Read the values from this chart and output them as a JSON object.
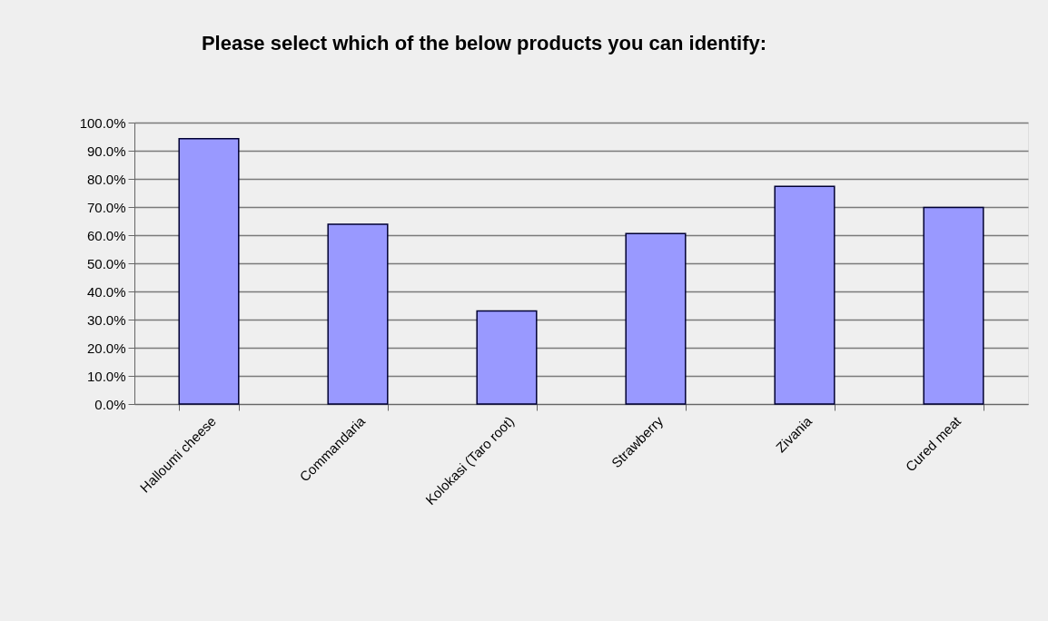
{
  "chart_data": {
    "type": "bar",
    "title": "Please select which of the below products you can identify:",
    "categories": [
      "Halloumi cheese",
      "Commandaria",
      "Kolokasi (Taro root)",
      "Strawberry",
      "Zivania",
      "Cured meat"
    ],
    "values": [
      94.3,
      63.9,
      33.1,
      60.6,
      77.3,
      69.8
    ],
    "color": "#9999ff",
    "ylim": [
      0,
      100
    ],
    "yticks": [
      {
        "value": 0,
        "label": "0.0%"
      },
      {
        "value": 10,
        "label": "10.0%"
      },
      {
        "value": 20,
        "label": "20.0%"
      },
      {
        "value": 30,
        "label": "30.0%"
      },
      {
        "value": 40,
        "label": "40.0%"
      },
      {
        "value": 50,
        "label": "50.0%"
      },
      {
        "value": 60,
        "label": "60.0%"
      },
      {
        "value": 70,
        "label": "70.0%"
      },
      {
        "value": 80,
        "label": "80.0%"
      },
      {
        "value": 90,
        "label": "90.0%"
      },
      {
        "value": 100,
        "label": "100.0%"
      }
    ],
    "grid": "y"
  }
}
